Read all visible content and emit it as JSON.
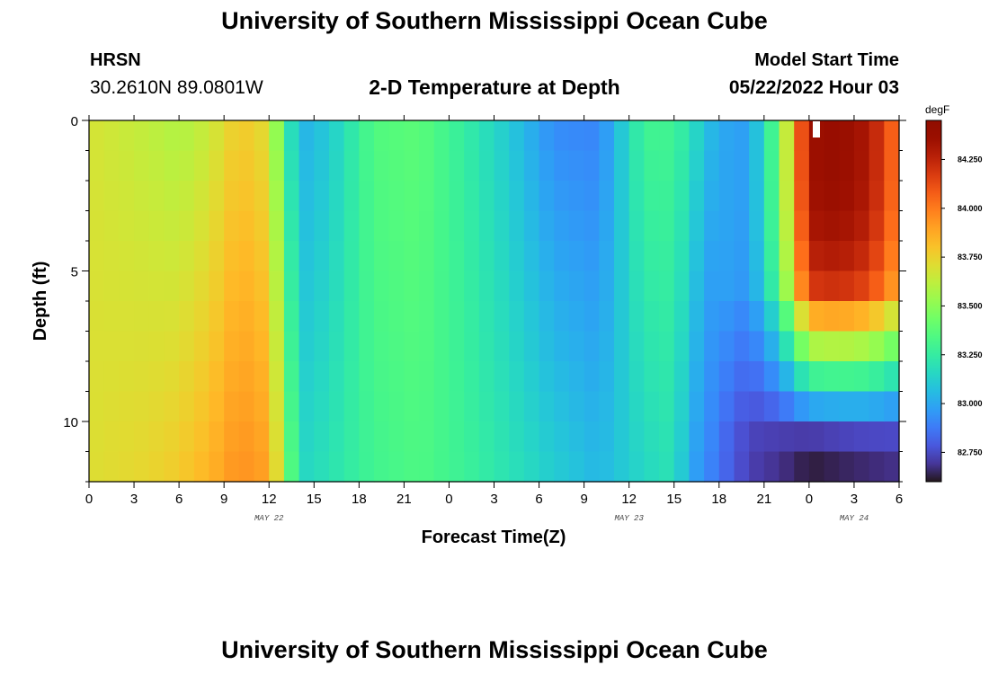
{
  "header": {
    "title": "University of Southern Mississippi Ocean Cube",
    "station_code": "HRSN",
    "coordinates": "30.2610N  89.0801W",
    "subtitle": "2-D Temperature at Depth",
    "start_label": "Model Start Time",
    "start_value": "05/22/2022 Hour 03"
  },
  "footer": {
    "title": "University of Southern Mississippi Ocean Cube"
  },
  "chart_data": {
    "type": "heatmap",
    "title": "2-D Temperature at Depth",
    "xlabel": "Forecast Time(Z)",
    "ylabel": "Depth (ft)",
    "x_unit": "hours since 2022-05-22 00Z",
    "xlim": [
      0,
      54
    ],
    "ylim": [
      0,
      12
    ],
    "y_inverted": true,
    "x_tick_values": [
      0,
      3,
      6,
      9,
      12,
      15,
      18,
      21,
      24,
      27,
      30,
      33,
      36,
      39,
      42,
      45,
      48,
      51,
      54
    ],
    "x_tick_labels": [
      "0",
      "3",
      "6",
      "9",
      "12",
      "15",
      "18",
      "21",
      "0",
      "3",
      "6",
      "9",
      "12",
      "15",
      "18",
      "21",
      "0",
      "3",
      "6"
    ],
    "y_tick_values": [
      0,
      5,
      10
    ],
    "y_tick_labels": [
      "0",
      "5",
      "10"
    ],
    "date_labels": [
      {
        "x": 12,
        "text": "MAY 22"
      },
      {
        "x": 36,
        "text": "MAY 23"
      },
      {
        "x": 51,
        "text": "MAY 24"
      }
    ],
    "colorbar": {
      "unit": "degF",
      "min": 82.6,
      "max": 84.45,
      "tick_values": [
        82.75,
        83.0,
        83.25,
        83.5,
        83.75,
        84.0,
        84.25
      ],
      "tick_labels": [
        "82.750",
        "83.000",
        "83.250",
        "83.500",
        "83.750",
        "84.000",
        "84.250"
      ],
      "colormap": "turbo"
    },
    "y_layers": [
      0,
      1,
      2,
      3,
      4,
      5,
      6,
      7,
      8,
      9,
      10,
      11,
      12
    ],
    "profiles": {
      "times": [
        0,
        4,
        6,
        8,
        10,
        12,
        13,
        14,
        16,
        19,
        22,
        25,
        28,
        31,
        34,
        37,
        39,
        40,
        42,
        44,
        46,
        48,
        50,
        52,
        54
      ],
      "top": [
        83.68,
        83.62,
        83.58,
        83.64,
        83.78,
        83.7,
        83.32,
        83.02,
        83.1,
        83.35,
        83.38,
        83.25,
        83.1,
        82.92,
        82.9,
        83.3,
        83.3,
        83.2,
        83.0,
        82.97,
        83.4,
        84.35,
        84.38,
        84.3,
        84.0
      ],
      "bottom": [
        83.7,
        83.74,
        83.78,
        83.85,
        83.95,
        83.9,
        83.55,
        83.15,
        83.2,
        83.3,
        83.34,
        83.28,
        83.2,
        83.12,
        83.05,
        83.15,
        83.2,
        83.0,
        82.85,
        82.72,
        82.68,
        82.62,
        82.64,
        82.66,
        82.68
      ]
    },
    "annotation": "white marker near x=48.5 at surface"
  }
}
